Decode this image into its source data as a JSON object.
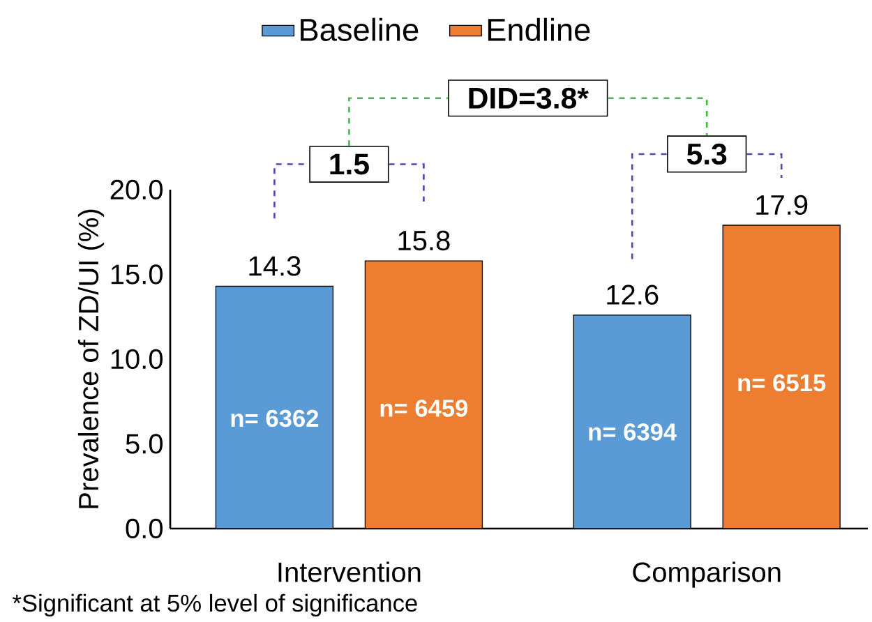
{
  "chart_data": {
    "type": "bar",
    "ylabel": "Prevalence of ZD/UI (%)",
    "categories": [
      "Intervention",
      "Comparison"
    ],
    "series": [
      {
        "name": "Baseline",
        "color": "#5b9bd5",
        "values": [
          14.3,
          12.6
        ]
      },
      {
        "name": "Endline",
        "color": "#ed7d31",
        "values": [
          15.8,
          17.9
        ]
      }
    ],
    "ylim": [
      0,
      20
    ],
    "yticks": [
      {
        "value": 0,
        "label": "0.0"
      },
      {
        "value": 5,
        "label": "5.0"
      },
      {
        "value": 10,
        "label": "10.0"
      },
      {
        "value": 15,
        "label": "15.0"
      },
      {
        "value": 20,
        "label": "20.0"
      }
    ],
    "data_labels": true,
    "legend": "top",
    "annotations": [
      "1.5",
      "5.3",
      "DID=3.8*",
      "n= 6362",
      "n= 6459",
      "n= 6394",
      "n= 6515",
      "*Significant at 5% level of significance"
    ]
  }
}
